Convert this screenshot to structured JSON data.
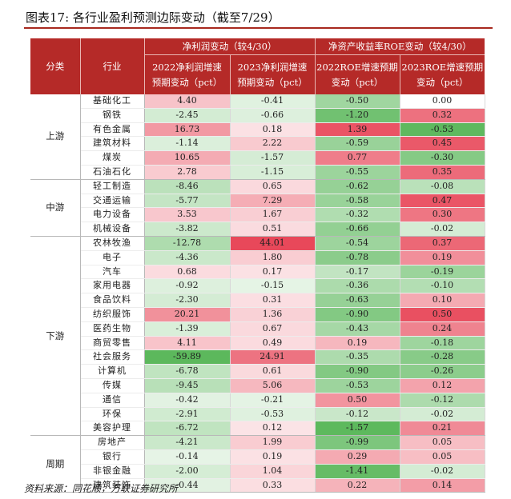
{
  "title": "图表17:  各行业盈利预测边际变动（截至7/29）",
  "headers": {
    "col_category": "分类",
    "col_industry": "行业",
    "group_profit": "净利润变动（较4/30）",
    "group_roe": "净资产收益率ROE变动（较4/30）",
    "sub_cols": [
      {
        "line1": "2022净利润增速",
        "line2": "预期变动（pct）"
      },
      {
        "line1": "2023净利润增速",
        "line2": "预期变动（pct）"
      },
      {
        "line1": "2022ROE增速预期",
        "line2": "变动（pct）"
      },
      {
        "line1": "2023ROE增速预期",
        "line2": "变动（pct）"
      }
    ]
  },
  "groups": [
    {
      "name": "上游",
      "rows": [
        {
          "industry": "基础化工",
          "v": [
            "4.40",
            "-0.41",
            "-0.50",
            "0.00"
          ]
        },
        {
          "industry": "钢铁",
          "v": [
            "-2.45",
            "-0.66",
            "-1.20",
            "0.32"
          ]
        },
        {
          "industry": "有色金属",
          "v": [
            "16.73",
            "0.18",
            "1.39",
            "-0.53"
          ]
        },
        {
          "industry": "建筑材料",
          "v": [
            "-1.14",
            "2.22",
            "-0.59",
            "0.45"
          ]
        },
        {
          "industry": "煤炭",
          "v": [
            "10.65",
            "-1.57",
            "0.77",
            "-0.30"
          ]
        },
        {
          "industry": "石油石化",
          "v": [
            "2.78",
            "-1.15",
            "-0.55",
            "0.35"
          ]
        }
      ]
    },
    {
      "name": "中游",
      "rows": [
        {
          "industry": "轻工制造",
          "v": [
            "-8.46",
            "0.65",
            "-0.62",
            "-0.08"
          ]
        },
        {
          "industry": "交通运输",
          "v": [
            "-5.77",
            "7.29",
            "-0.58",
            "0.47"
          ]
        },
        {
          "industry": "电力设备",
          "v": [
            "3.53",
            "1.67",
            "-0.32",
            "0.30"
          ]
        },
        {
          "industry": "机械设备",
          "v": [
            "-3.82",
            "0.51",
            "-0.66",
            "-0.02"
          ]
        }
      ]
    },
    {
      "name": "下游",
      "rows": [
        {
          "industry": "农林牧渔",
          "v": [
            "-12.78",
            "44.01",
            "-0.54",
            "0.37"
          ]
        },
        {
          "industry": "电子",
          "v": [
            "-4.36",
            "1.80",
            "-0.78",
            "0.19"
          ]
        },
        {
          "industry": "汽车",
          "v": [
            "0.68",
            "0.17",
            "-0.17",
            "-0.19"
          ]
        },
        {
          "industry": "家用电器",
          "v": [
            "-0.92",
            "-0.15",
            "-0.36",
            "-0.10"
          ]
        },
        {
          "industry": "食品饮料",
          "v": [
            "-2.30",
            "0.31",
            "-0.63",
            "0.10"
          ]
        },
        {
          "industry": "纺织服饰",
          "v": [
            "20.21",
            "1.36",
            "-0.90",
            "0.50"
          ]
        },
        {
          "industry": "医药生物",
          "v": [
            "-1.39",
            "0.67",
            "-0.43",
            "0.24"
          ]
        },
        {
          "industry": "商贸零售",
          "v": [
            "4.11",
            "0.49",
            "0.19",
            "-0.18"
          ]
        },
        {
          "industry": "社会服务",
          "v": [
            "-59.89",
            "24.91",
            "-0.35",
            "-0.28"
          ]
        },
        {
          "industry": "计算机",
          "v": [
            "-6.78",
            "0.61",
            "-0.90",
            "-0.26"
          ]
        },
        {
          "industry": "传媒",
          "v": [
            "-9.45",
            "5.06",
            "-0.53",
            "0.12"
          ]
        },
        {
          "industry": "通信",
          "v": [
            "-0.42",
            "-0.21",
            "0.50",
            "-0.12"
          ]
        },
        {
          "industry": "环保",
          "v": [
            "-2.91",
            "-0.53",
            "-0.12",
            "-0.02"
          ]
        },
        {
          "industry": "美容护理",
          "v": [
            "-6.72",
            "0.12",
            "-1.57",
            "0.21"
          ]
        }
      ]
    },
    {
      "name": "周期",
      "rows": [
        {
          "industry": "房地产",
          "v": [
            "-4.21",
            "1.99",
            "-0.99",
            "0.05"
          ]
        },
        {
          "industry": "银行",
          "v": [
            "-0.14",
            "0.19",
            "0.29",
            "0.05"
          ]
        },
        {
          "industry": "非银金融",
          "v": [
            "-2.00",
            "1.04",
            "-1.41",
            "-0.02"
          ]
        },
        {
          "industry": "建筑装饰",
          "v": [
            "-0.44",
            "0.33",
            "0.22",
            "0.14"
          ]
        }
      ]
    }
  ],
  "source": "资料来源：同花顺，万联证券研究所",
  "colors": {
    "header_bg": "#b52a28",
    "positive_strong": "#e8485a",
    "negative_strong": "#5cb85c"
  }
}
